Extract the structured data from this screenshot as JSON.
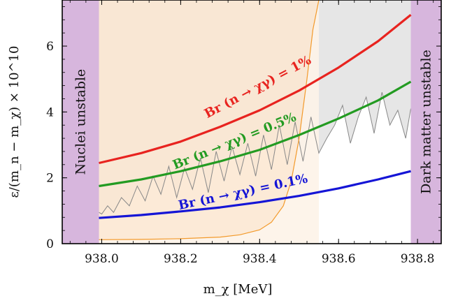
{
  "chart_data": {
    "type": "line",
    "xlabel": "m_χ [MeV]",
    "ylabel": "ε/(m_n − m_χ) × 10^10",
    "xlim": [
      937.9,
      938.86
    ],
    "ylim": [
      0,
      7.4
    ],
    "xticks": [
      938.0,
      938.2,
      938.4,
      938.6,
      938.8
    ],
    "xtick_labels": [
      "938.0",
      "938.2",
      "938.4",
      "938.6",
      "938.8"
    ],
    "yticks": [
      0,
      2,
      4,
      6
    ],
    "ytick_labels": [
      "0",
      "2",
      "4",
      "6"
    ],
    "grid": false,
    "legend": "none",
    "bands": [
      {
        "name": "nuclei",
        "label": "Nuclei unstable",
        "x_range": [
          937.9,
          937.993
        ],
        "color": "#d7b6dd"
      },
      {
        "name": "dark-matter",
        "label": "Dark matter unstable",
        "x_range": [
          938.783,
          938.86
        ],
        "color": "#d7b6dd"
      }
    ],
    "series": [
      {
        "name": "Br (n → χγ) = 1%",
        "color": "#e8231f",
        "x": [
          937.993,
          938.1,
          938.2,
          938.3,
          938.4,
          938.5,
          938.6,
          938.7,
          938.783
        ],
        "y": [
          2.45,
          2.75,
          3.1,
          3.55,
          4.05,
          4.65,
          5.35,
          6.15,
          6.95
        ]
      },
      {
        "name": "Br (n → χγ) = 0.5%",
        "color": "#239b22",
        "x": [
          937.993,
          938.1,
          938.2,
          938.3,
          938.4,
          938.5,
          938.6,
          938.7,
          938.783
        ],
        "y": [
          1.75,
          1.95,
          2.2,
          2.5,
          2.85,
          3.3,
          3.8,
          4.35,
          4.92
        ]
      },
      {
        "name": "Br (n → χγ) = 0.1%",
        "color": "#1515d6",
        "x": [
          937.993,
          938.1,
          938.2,
          938.3,
          938.4,
          938.5,
          938.6,
          938.7,
          938.783
        ],
        "y": [
          0.78,
          0.87,
          0.98,
          1.1,
          1.26,
          1.45,
          1.68,
          1.95,
          2.2
        ]
      }
    ],
    "jagged_constraint": {
      "color": "#888888",
      "fill": "#dadada",
      "x": [
        937.993,
        938.0,
        938.015,
        938.03,
        938.05,
        938.07,
        938.09,
        938.11,
        938.13,
        938.15,
        938.17,
        938.19,
        938.21,
        938.23,
        938.25,
        938.27,
        938.29,
        938.31,
        938.33,
        938.35,
        938.37,
        938.39,
        938.41,
        938.43,
        938.45,
        938.47,
        938.49,
        938.51,
        938.53,
        938.55,
        938.57,
        938.59,
        938.61,
        938.63,
        938.65,
        938.67,
        938.69,
        938.71,
        938.73,
        938.75,
        938.77,
        938.783
      ],
      "y": [
        0.95,
        0.9,
        1.15,
        0.95,
        1.4,
        1.15,
        1.75,
        1.3,
        2.05,
        1.5,
        2.35,
        1.4,
        2.3,
        1.65,
        2.6,
        1.55,
        2.8,
        1.9,
        2.95,
        2.1,
        3.05,
        2.05,
        3.3,
        2.25,
        3.6,
        2.4,
        3.7,
        2.5,
        3.85,
        2.75,
        3.2,
        3.6,
        4.2,
        3.05,
        3.85,
        4.45,
        3.35,
        4.6,
        3.6,
        4.05,
        3.2,
        4.1
      ]
    },
    "exclusion_region": {
      "color": "#f39a2b",
      "fill": "#fbe6d0",
      "x": [
        937.993,
        938.1,
        938.2,
        938.3,
        938.35,
        938.4,
        938.43,
        938.46,
        938.48,
        938.5,
        938.52,
        938.535,
        938.55
      ],
      "y": [
        0.12,
        0.13,
        0.15,
        0.2,
        0.27,
        0.42,
        0.65,
        1.15,
        1.9,
        3.2,
        5.0,
        6.5,
        7.4
      ]
    },
    "annotations": [
      {
        "text": "Br (n → χγ) = 1%",
        "color": "#e8231f",
        "x": 938.4,
        "y": 4.65
      },
      {
        "text": "Br (n → χγ) = 0.5%",
        "color": "#239b22",
        "x": 938.34,
        "y": 3.0
      },
      {
        "text": "Br (n → χγ) = 0.1%",
        "color": "#1515d6",
        "x": 938.36,
        "y": 1.45
      }
    ]
  }
}
